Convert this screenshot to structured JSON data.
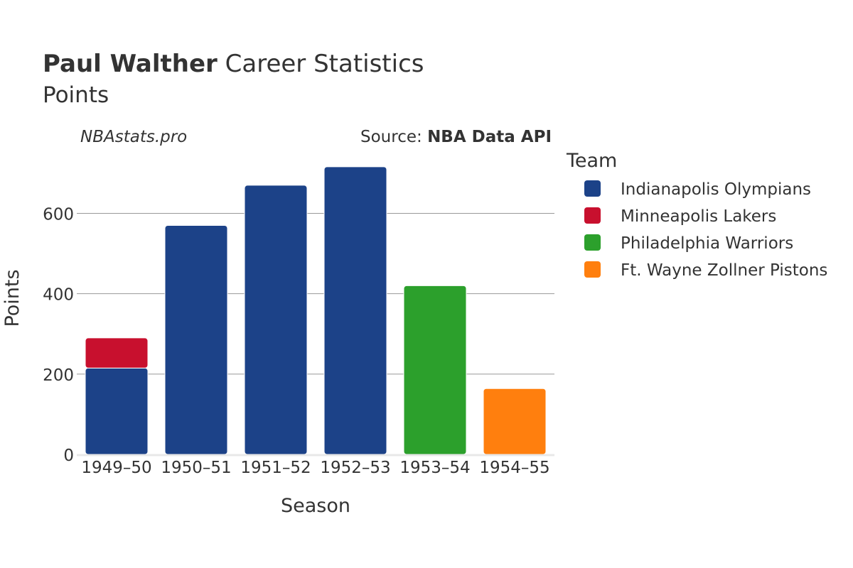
{
  "title": {
    "bold": "Paul Walther",
    "rest": " Career Statistics"
  },
  "subtitle": "Points",
  "watermark": "NBAstats.pro",
  "source": {
    "prefix": "Source: ",
    "name": "NBA Data API"
  },
  "legend_title": "Team",
  "chart_data": {
    "type": "bar",
    "stacked": true,
    "categories": [
      "1949–50",
      "1950–51",
      "1951–52",
      "1952–53",
      "1953–54",
      "1954–55"
    ],
    "series": [
      {
        "name": "Indianapolis Olympians",
        "color": "#1c4288",
        "values": [
          215,
          570,
          670,
          716,
          0,
          0
        ]
      },
      {
        "name": "Minneapolis Lakers",
        "color": "#c8102e",
        "values": [
          75,
          0,
          0,
          0,
          0,
          0
        ]
      },
      {
        "name": "Philadelphia Warriors",
        "color": "#2ca02c",
        "values": [
          0,
          0,
          0,
          0,
          420,
          0
        ]
      },
      {
        "name": "Ft. Wayne Zollner Pistons",
        "color": "#ff7f0e",
        "values": [
          0,
          0,
          0,
          0,
          0,
          164
        ]
      }
    ],
    "xlabel": "Season",
    "ylabel": "Points",
    "ylim": [
      0,
      760
    ],
    "yticks": [
      0,
      200,
      400,
      600
    ],
    "grid": true,
    "legend_position": "right"
  }
}
